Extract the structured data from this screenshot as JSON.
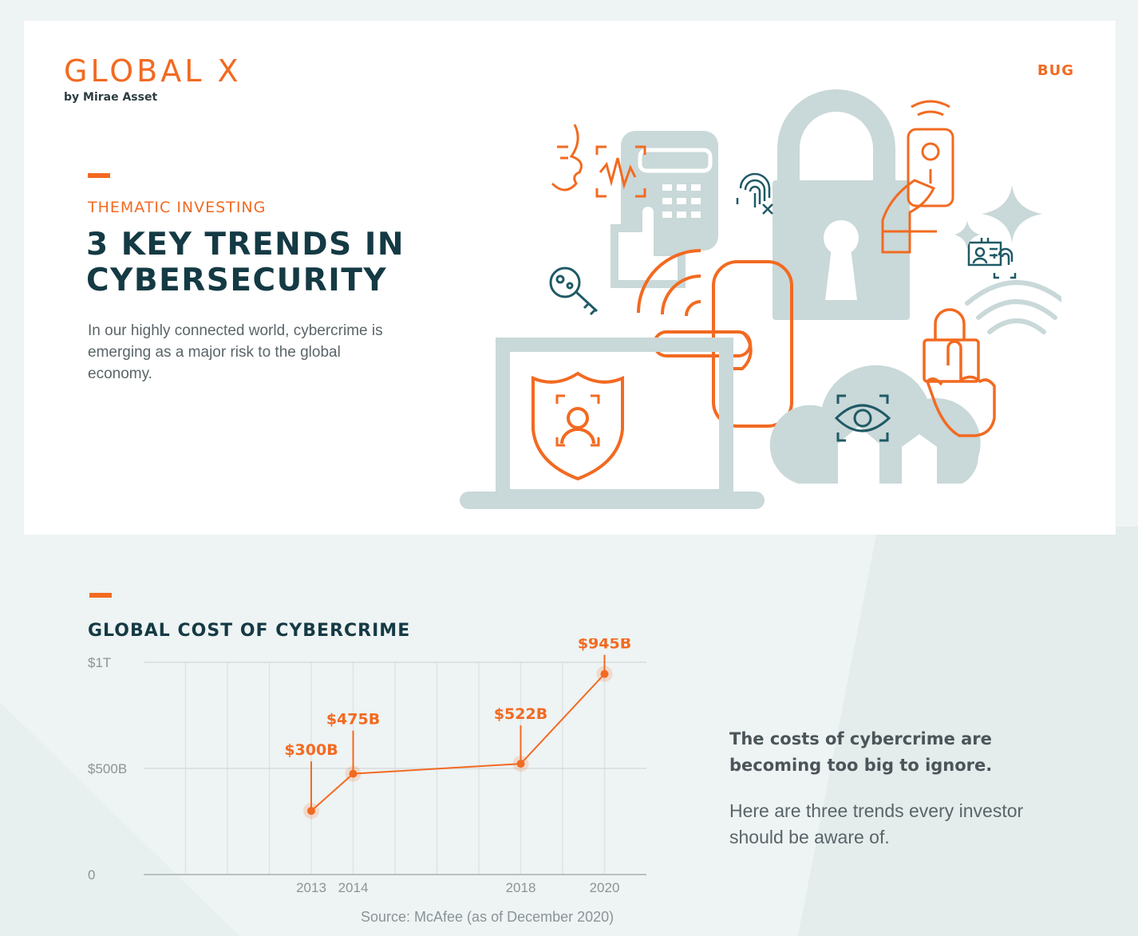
{
  "brand": {
    "logo_text": "GLOBAL X",
    "logo_sub": "by Mirae Asset",
    "ticker": "BUG"
  },
  "header": {
    "kicker": "THEMATIC INVESTING",
    "title_line1": "3 KEY TRENDS IN",
    "title_line2": "CYBERSECURITY",
    "intro": "In our highly connected world, cybercrime is emerging as a major risk to the global economy."
  },
  "colors": {
    "accent": "#f26a21",
    "heading": "#143a44",
    "illustration_gray": "#c9d8d8",
    "illustration_teal": "#1f5a66",
    "background": "#eef3f3"
  },
  "icons": [
    "padlock-icon",
    "keypad-icon",
    "fingerprint-icon",
    "voice-recognition-icon",
    "digital-key-icon",
    "smart-lock-handle-icon",
    "laptop-shield-icon",
    "cloud-eye-icon",
    "phone-in-hand-icon",
    "wifi-icon",
    "id-badge-icon",
    "sparkle-icon"
  ],
  "chart_data": {
    "type": "line",
    "title": "GLOBAL COST OF CYBERCRIME",
    "x": [
      "2013",
      "2014",
      "2018",
      "2020"
    ],
    "values": [
      300,
      475,
      522,
      945
    ],
    "value_labels": [
      "$300B",
      "$475B",
      "$522B",
      "$945B"
    ],
    "yticks": [
      "0",
      "$500B",
      "$1T"
    ],
    "ylim": [
      0,
      1000
    ],
    "xlim": [
      2009,
      2021
    ],
    "grid": true,
    "source": "Source: McAfee (as of December 2020)"
  },
  "takeaway": {
    "bold": "The costs of cybercrime are becoming too big to ignore.",
    "body": "Here are three trends every investor should be aware of."
  }
}
